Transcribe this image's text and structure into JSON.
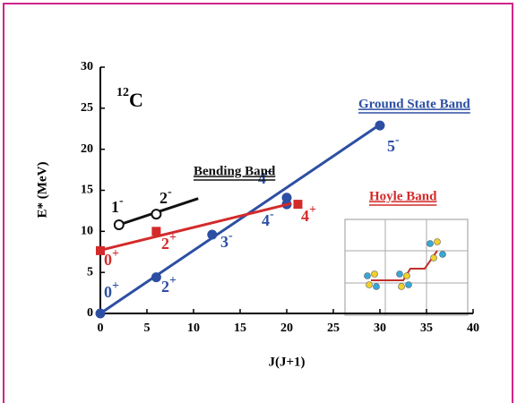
{
  "chart_data": {
    "type": "scatter",
    "title": {
      "mass": "12",
      "element": "C"
    },
    "x_label": "J(J+1)",
    "y_label": "E* (MeV)",
    "xlim": [
      0,
      40
    ],
    "ylim": [
      0,
      30
    ],
    "xticks": [
      0,
      5,
      10,
      15,
      20,
      25,
      30,
      35,
      40
    ],
    "yticks": [
      0,
      5,
      10,
      15,
      20,
      25,
      30
    ],
    "series": [
      {
        "name": "Ground State Band",
        "color": "#2d4fa3",
        "marker": "circle",
        "x": [
          0,
          6,
          12,
          20,
          20,
          30
        ],
        "values": [
          0,
          4.4,
          9.6,
          14.1,
          13.3,
          22.9
        ],
        "labels": [
          {
            "j": "0",
            "parity": "+"
          },
          {
            "j": "2",
            "parity": "+"
          },
          {
            "j": "3",
            "parity": "-"
          },
          {
            "j": "4",
            "parity": "+"
          },
          {
            "j": "4",
            "parity": "-"
          },
          {
            "j": "5",
            "parity": "-"
          }
        ],
        "fit_x": [
          0,
          30
        ],
        "fit_y": [
          0,
          23
        ]
      },
      {
        "name": "Hoyle Band",
        "color": "#d42a2a",
        "marker": "square",
        "x": [
          0,
          6,
          21.2
        ],
        "values": [
          7.65,
          10.0,
          13.3
        ],
        "labels": [
          {
            "j": "0",
            "parity": "+"
          },
          {
            "j": "2",
            "parity": "+"
          },
          {
            "j": "4",
            "parity": "+"
          }
        ],
        "fit_x": [
          0,
          20.5
        ],
        "fit_y": [
          7.7,
          13.4
        ]
      },
      {
        "name": "Bending Band",
        "color": "#111111",
        "marker": "open-circle",
        "x": [
          2,
          6
        ],
        "values": [
          10.8,
          12.1
        ],
        "labels": [
          {
            "j": "1",
            "parity": "-"
          },
          {
            "j": "2",
            "parity": "-"
          }
        ],
        "fit_x": [
          2,
          10.5
        ],
        "fit_y": [
          10.8,
          14.0
        ]
      }
    ]
  }
}
